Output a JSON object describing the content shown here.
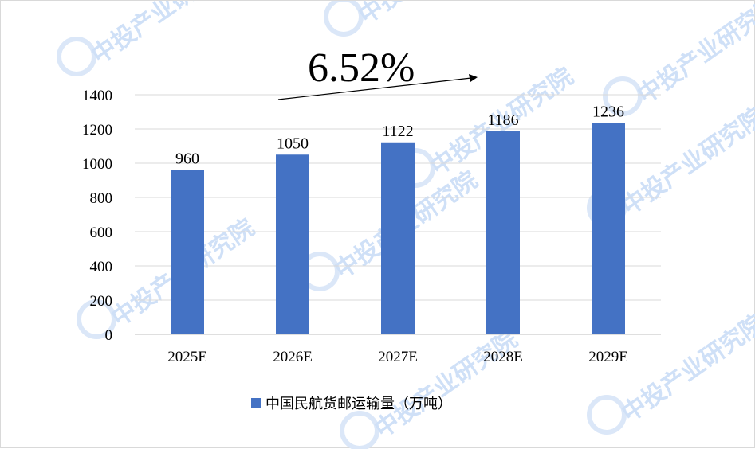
{
  "chart_data": {
    "type": "bar",
    "categories": [
      "2025E",
      "2026E",
      "2027E",
      "2028E",
      "2029E"
    ],
    "series": [
      {
        "name": "中国民航货邮运输量（万吨）",
        "values": [
          960,
          1050,
          1122,
          1186,
          1236
        ],
        "color": "#4472c4"
      }
    ],
    "ylim": [
      0,
      1400
    ],
    "yticks": [
      0,
      200,
      400,
      600,
      800,
      1000,
      1200,
      1400
    ],
    "grid": true,
    "legend_position": "bottom",
    "annotations": [
      {
        "text": "6.52%",
        "type": "growth-arrow"
      }
    ]
  },
  "watermark": {
    "text": "中投产业研究院"
  }
}
